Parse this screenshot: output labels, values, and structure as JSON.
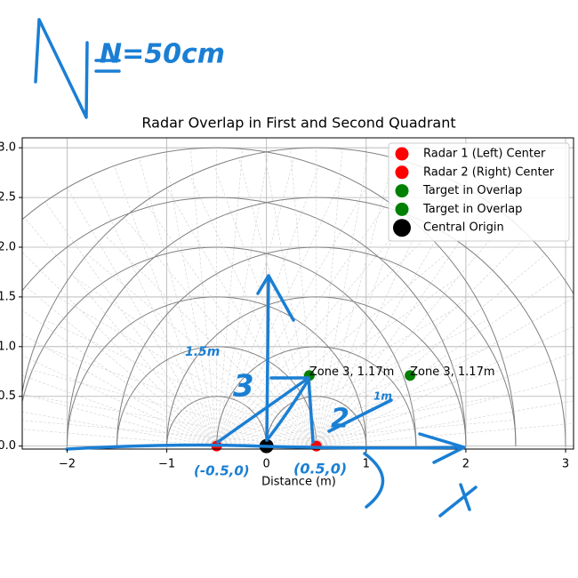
{
  "chart_data": {
    "type": "scatter",
    "title": "Radar Overlap in First and Second Quadrant",
    "x_label": "Distance (m)",
    "xlim": [
      -2.45,
      3.08
    ],
    "ylim": [
      -0.03,
      3.1
    ],
    "xticks": [
      {
        "value": -2,
        "label": "−2"
      },
      {
        "value": -1,
        "label": "−1"
      },
      0,
      1,
      2,
      3
    ],
    "yticks": [
      {
        "value": 0,
        "label": "0.0"
      },
      0.5,
      {
        "value": 1,
        "label": "1.0"
      },
      1.5,
      {
        "value": 2,
        "label": "2.0"
      },
      2.5,
      {
        "value": 3,
        "label": "3.0"
      }
    ],
    "grid": true,
    "legend": "upper right",
    "range_rings": [
      0.5,
      1,
      1.5,
      2,
      2.5,
      3
    ],
    "series": [
      {
        "name": "Radar 1 (Left) Center",
        "color": "#ff0000",
        "x": [
          -0.5
        ],
        "y": [
          0
        ],
        "ring_center": true
      },
      {
        "name": "Radar 2 (Right) Center",
        "color": "#ff0000",
        "x": [
          0.5
        ],
        "y": [
          0
        ],
        "ring_center": true
      },
      {
        "name": "Target in Overlap",
        "color": "#008000",
        "x": [
          0.43
        ],
        "y": [
          0.71
        ],
        "point_labels": [
          "Zone 3, 1.17m"
        ]
      },
      {
        "name": "Target in Overlap",
        "color": "#008000",
        "x": [
          1.44
        ],
        "y": [
          0.71
        ],
        "point_labels": [
          "Zone 3, 1.17m"
        ]
      },
      {
        "name": "Central Origin",
        "color": "#000000",
        "x": [
          0
        ],
        "y": [
          0
        ]
      }
    ],
    "handwriting": [
      "N=50cm",
      "1.5m",
      "1m",
      "3",
      "2",
      "(-0.5,0)",
      "(0.5,0)"
    ]
  }
}
